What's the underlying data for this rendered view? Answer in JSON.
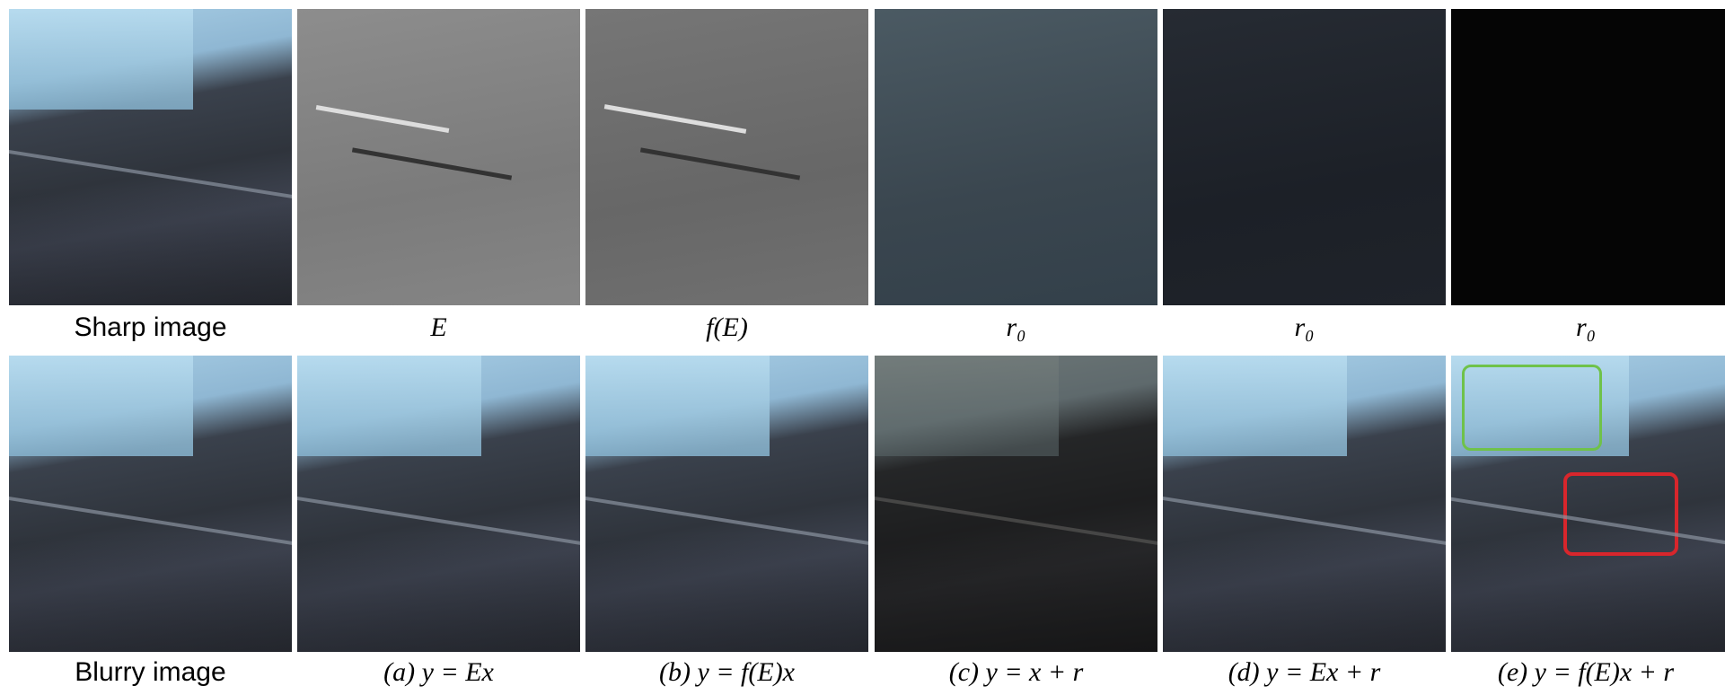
{
  "rows": [
    {
      "label": "Sharp image",
      "captions": [
        "E",
        "f(E)",
        "r₀",
        "r₀",
        "r₀"
      ]
    },
    {
      "label": "Blurry image",
      "captions": [
        "(a) y = Ex",
        "(b) y = f(E)x",
        "(c) y = x + r",
        "(d) y = Ex + r",
        "(e) y = f(E)x + r"
      ]
    }
  ]
}
